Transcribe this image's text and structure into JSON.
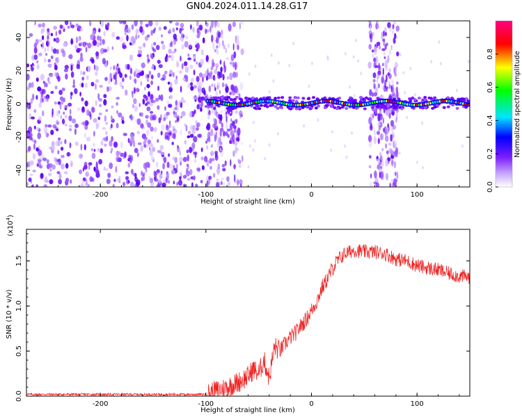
{
  "title": "GN04.2024.011.14.28.G17",
  "chart_data": [
    {
      "type": "heatmap",
      "xlabel": "Height of straight line (km)",
      "ylabel": "Frequency (Hz)",
      "xlim": [
        -270,
        150
      ],
      "ylim": [
        -50,
        50
      ],
      "xticks": [
        -200,
        -100,
        0,
        100
      ],
      "yticks": [
        -40,
        -20,
        0,
        20,
        40
      ],
      "colorbar": {
        "label": "Normalized spectral amplitude",
        "range": [
          0,
          1
        ],
        "ticks": [
          "0.0",
          "0.2",
          "0.4",
          "0.6",
          "0.8"
        ],
        "tick_values": [
          0.0,
          0.2,
          0.4,
          0.6,
          0.8
        ],
        "colors": [
          "#ffffff",
          "#7a1cff",
          "#0000ff",
          "#00e5ff",
          "#00ff00",
          "#ffff00",
          "#ff0000",
          "#ff0080"
        ]
      },
      "noise_region_x": [
        -270,
        -100
      ],
      "burst_regions_x": [
        [
          -100,
          -65
        ],
        [
          55,
          82
        ]
      ],
      "signal_band_hz": [
        -3,
        4
      ]
    },
    {
      "type": "line",
      "xlabel": "Height of straight line (km)",
      "ylabel": "SNR (10 * v/v)",
      "yscale_label": "(x10",
      "yscale_exp": "4",
      "xlim": [
        -270,
        150
      ],
      "ylim": [
        0,
        1.85
      ],
      "xticks": [
        -200,
        -100,
        0,
        100
      ],
      "yticks": [
        "0.0",
        "0.5",
        "1.0",
        "1.5"
      ],
      "ytick_values": [
        0.0,
        0.5,
        1.0,
        1.5
      ],
      "color": "#ee2222",
      "x": [
        -270,
        -200,
        -120,
        -100,
        -90,
        -80,
        -70,
        -60,
        -55,
        -50,
        -45,
        -40,
        -35,
        -30,
        -25,
        -20,
        -15,
        -10,
        -5,
        0,
        5,
        10,
        15,
        20,
        25,
        30,
        40,
        50,
        60,
        70,
        80,
        90,
        100,
        110,
        120,
        130,
        140,
        150
      ],
      "y": [
        0.02,
        0.02,
        0.02,
        0.02,
        0.06,
        0.1,
        0.15,
        0.22,
        0.3,
        0.25,
        0.4,
        0.2,
        0.55,
        0.5,
        0.58,
        0.65,
        0.7,
        0.78,
        0.85,
        0.95,
        1.05,
        1.2,
        1.3,
        1.42,
        1.5,
        1.57,
        1.62,
        1.6,
        1.6,
        1.58,
        1.52,
        1.5,
        1.45,
        1.42,
        1.4,
        1.36,
        1.33,
        1.32
      ]
    }
  ]
}
